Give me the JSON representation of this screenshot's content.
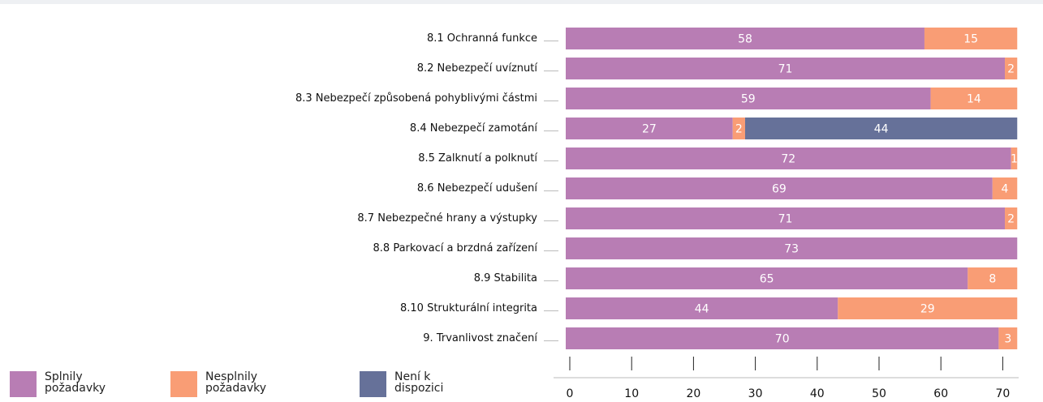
{
  "chart_data": {
    "type": "stacked-barh",
    "categories": [
      "8.1 Ochranná funkce",
      "8.2 Nebezpečí uvíznutí",
      "8.3 Nebezpečí způsobená pohyblivými částmi",
      "8.4 Nebezpečí zamotání",
      "8.5 Zalknutí a polknutí",
      "8.6 Nebezpečí udušení",
      "8.7 Nebezpečné hrany a výstupky",
      "8.8 Parkovací a brzdná zařízení",
      "8.9 Stabilita",
      "8.10 Strukturální integrita",
      "9. Trvanlivost značení"
    ],
    "series": [
      {
        "name": "Splnily požadavky",
        "color": "#b87db4",
        "values": [
          58,
          71,
          59,
          27,
          72,
          69,
          71,
          73,
          65,
          44,
          70
        ]
      },
      {
        "name": "Nesplnily požadavky",
        "color": "#f99d75",
        "values": [
          15,
          2,
          14,
          2,
          1,
          4,
          2,
          null,
          8,
          29,
          3
        ]
      },
      {
        "name": "Není k dispozici",
        "color": "#667199",
        "values": [
          null,
          null,
          null,
          44,
          null,
          null,
          null,
          null,
          null,
          null,
          null
        ]
      }
    ],
    "xlim": [
      0,
      73
    ],
    "xticks": [
      0,
      10,
      20,
      30,
      40,
      50,
      60,
      70
    ]
  }
}
